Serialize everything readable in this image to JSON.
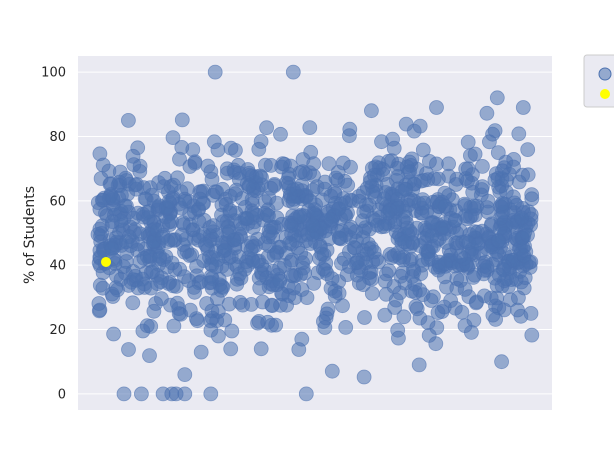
{
  "chart_data": {
    "type": "scatter",
    "title": "",
    "xlabel": "",
    "ylabel": "% of Students",
    "ylim": [
      -5,
      105
    ],
    "yticks": [
      0,
      20,
      40,
      60,
      80,
      100
    ],
    "grid": true,
    "legend_placement": "upper-right (clipped)",
    "colors": {
      "background": "#eaeaf2",
      "grid": "#ffffff",
      "series": "#4c72b0",
      "highlight": "#ffff00"
    },
    "x_visible_count_approx": 1200,
    "series": [
      {
        "name": "",
        "color": "#4c72b0",
        "opacity": 0.55,
        "marker": "circle",
        "summary": "≈1200 points spread across the x-range, concentrated between 30 and 70 with mean ≈ 50; a few at 0 and at 100"
      },
      {
        "name": "",
        "color": "#ffff00",
        "marker": "circle",
        "points": [
          {
            "x": 0,
            "y": 41
          }
        ]
      }
    ],
    "notable_points": [
      {
        "x_fraction": 0.06,
        "y": 0
      },
      {
        "x_fraction": 0.1,
        "y": 0
      },
      {
        "x_fraction": 0.15,
        "y": 0
      },
      {
        "x_fraction": 0.17,
        "y": 0
      },
      {
        "x_fraction": 0.18,
        "y": 0
      },
      {
        "x_fraction": 0.2,
        "y": 0
      },
      {
        "x_fraction": 0.26,
        "y": 0
      },
      {
        "x_fraction": 0.48,
        "y": 0
      },
      {
        "x_fraction": 0.27,
        "y": 100
      },
      {
        "x_fraction": 0.45,
        "y": 100
      },
      {
        "x_fraction": 0.07,
        "y": 85
      },
      {
        "x_fraction": 0.63,
        "y": 88
      },
      {
        "x_fraction": 0.78,
        "y": 89
      },
      {
        "x_fraction": 0.92,
        "y": 92
      },
      {
        "x_fraction": 0.98,
        "y": 89
      },
      {
        "x_fraction": 0.74,
        "y": 9
      },
      {
        "x_fraction": 0.2,
        "y": 6
      },
      {
        "x_fraction": 0.93,
        "y": 10
      }
    ]
  }
}
